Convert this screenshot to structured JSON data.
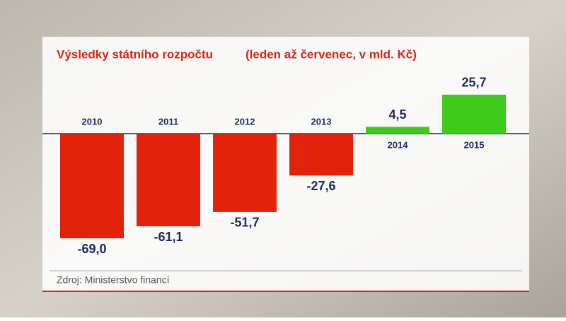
{
  "chart_data": {
    "type": "bar",
    "title": "Výsledky státního rozpočtu",
    "subtitle": "(leden až červenec, v mld. Kč)",
    "categories": [
      "2010",
      "2011",
      "2012",
      "2013",
      "2014",
      "2015"
    ],
    "values": [
      -69.0,
      -61.1,
      -51.7,
      -27.6,
      4.5,
      25.7
    ],
    "value_labels": [
      "-69,0",
      "-61,1",
      "-51,7",
      "-27,6",
      "4,5",
      "25,7"
    ],
    "colors": [
      "#e3220c",
      "#e3220c",
      "#e3220c",
      "#e3220c",
      "#3fcb1c",
      "#3fcb1c"
    ],
    "source": "Zdroj: Ministerstvo financí"
  }
}
